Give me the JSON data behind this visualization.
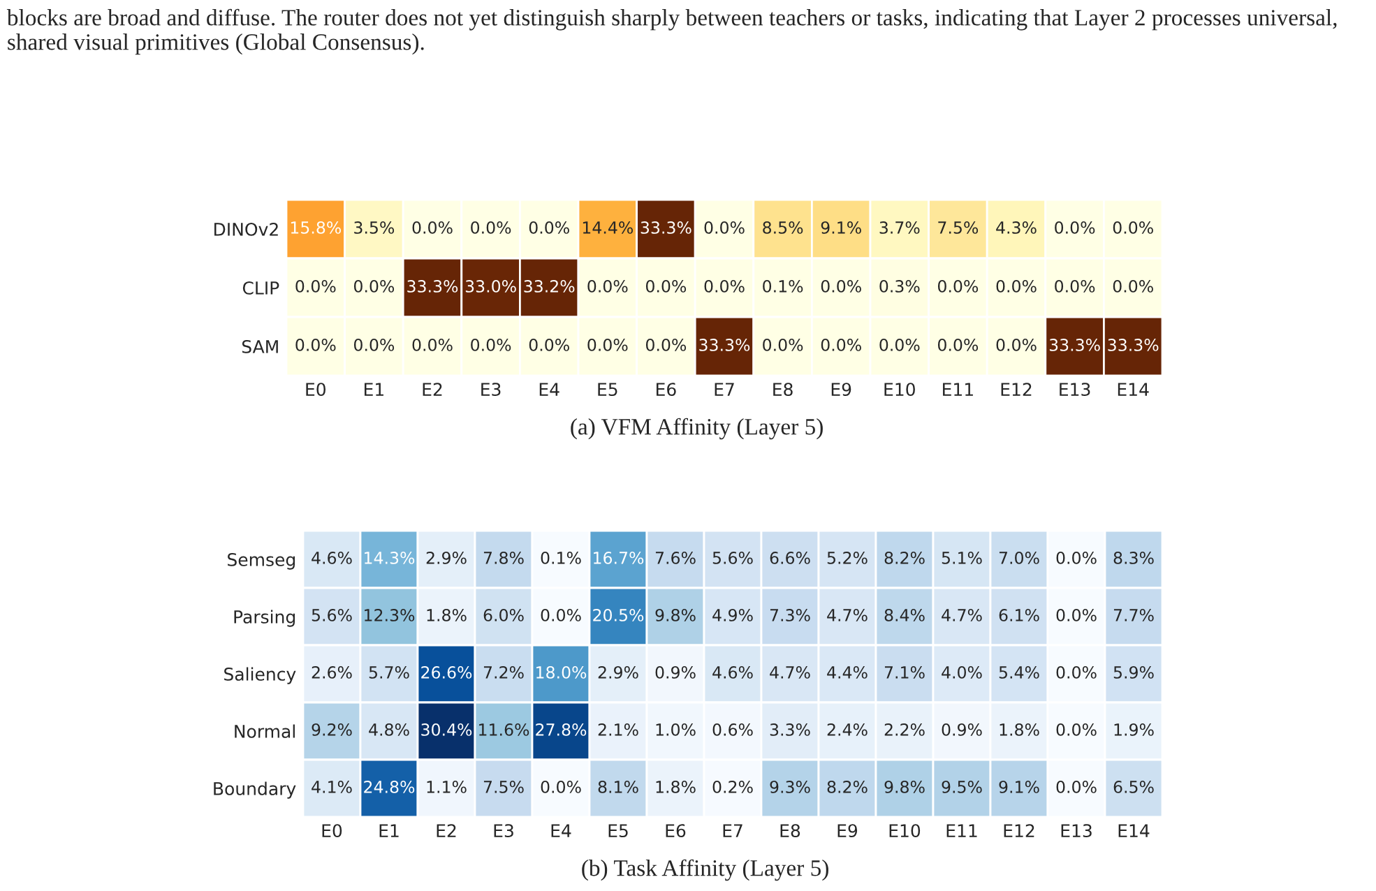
{
  "chart_data": [
    {
      "type": "heatmap",
      "title": "(a) VFM Affinity (Layer 5)",
      "annotations": [
        "blocks are broad and diffuse. The router does not yet distinguish sharply between teachers or tasks, indicating that Layer 2 processes universal, shared visual primitives (Global Consensus)."
      ],
      "categories": [
        "E0",
        "E1",
        "E2",
        "E3",
        "E4",
        "E5",
        "E6",
        "E7",
        "E8",
        "E9",
        "E10",
        "E11",
        "E12",
        "E13",
        "E14"
      ],
      "y_categories": [
        "DINOv2",
        "CLIP",
        "SAM"
      ],
      "cells": [
        [
          15.8,
          3.5,
          0.0,
          0.0,
          0.0,
          14.4,
          33.3,
          0.0,
          8.5,
          9.1,
          3.7,
          7.5,
          4.3,
          0.0,
          0.0
        ],
        [
          0.0,
          0.0,
          33.3,
          33.0,
          33.2,
          0.0,
          0.0,
          0.0,
          0.1,
          0.0,
          0.3,
          0.0,
          0.0,
          0.0,
          0.0
        ],
        [
          0.0,
          0.0,
          0.0,
          0.0,
          0.0,
          0.0,
          0.0,
          33.3,
          0.0,
          0.0,
          0.0,
          0.0,
          0.0,
          33.3,
          33.3
        ]
      ],
      "cell_labels": [
        [
          "15.8%",
          "3.5%",
          "0.0%",
          "0.0%",
          "0.0%",
          "14.4%",
          "33.3%",
          "0.0%",
          "8.5%",
          "9.1%",
          "3.7%",
          "7.5%",
          "4.3%",
          "0.0%",
          "0.0%"
        ],
        [
          "0.0%",
          "0.0%",
          "33.3%",
          "33.0%",
          "33.2%",
          "0.0%",
          "0.0%",
          "0.0%",
          "0.1%",
          "0.0%",
          "0.3%",
          "0.0%",
          "0.0%",
          "0.0%",
          "0.0%"
        ],
        [
          "0.0%",
          "0.0%",
          "0.0%",
          "0.0%",
          "0.0%",
          "0.0%",
          "0.0%",
          "33.3%",
          "0.0%",
          "0.0%",
          "0.0%",
          "0.0%",
          "0.0%",
          "33.3%",
          "33.3%"
        ]
      ]
    },
    {
      "type": "heatmap",
      "title": "(b) Task Affinity (Layer 5)",
      "categories": [
        "E0",
        "E1",
        "E2",
        "E3",
        "E4",
        "E5",
        "E6",
        "E7",
        "E8",
        "E9",
        "E10",
        "E11",
        "E12",
        "E13",
        "E14"
      ],
      "y_categories": [
        "Semseg",
        "Parsing",
        "Saliency",
        "Normal",
        "Boundary"
      ],
      "cells": [
        [
          4.6,
          14.3,
          2.9,
          7.8,
          0.1,
          16.7,
          7.6,
          5.6,
          6.6,
          5.2,
          8.2,
          5.1,
          7.0,
          0.0,
          8.3
        ],
        [
          5.6,
          12.3,
          1.8,
          6.0,
          0.0,
          20.5,
          9.8,
          4.9,
          7.3,
          4.7,
          8.4,
          4.7,
          6.1,
          0.0,
          7.7
        ],
        [
          2.6,
          5.7,
          26.6,
          7.2,
          18.0,
          2.9,
          0.9,
          4.6,
          4.7,
          4.4,
          7.1,
          4.0,
          5.4,
          0.0,
          5.9
        ],
        [
          9.2,
          4.8,
          30.4,
          11.6,
          27.8,
          2.1,
          1.0,
          0.6,
          3.3,
          2.4,
          2.2,
          0.9,
          1.8,
          0.0,
          1.9
        ],
        [
          4.1,
          24.8,
          1.1,
          7.5,
          0.0,
          8.1,
          1.8,
          0.2,
          9.3,
          8.2,
          9.8,
          9.5,
          9.1,
          0.0,
          6.5
        ]
      ],
      "cell_labels": [
        [
          "4.6%",
          "14.3%",
          "2.9%",
          "7.8%",
          "0.1%",
          "16.7%",
          "7.6%",
          "5.6%",
          "6.6%",
          "5.2%",
          "8.2%",
          "5.1%",
          "7.0%",
          "0.0%",
          "8.3%"
        ],
        [
          "5.6%",
          "12.3%",
          "1.8%",
          "6.0%",
          "0.0%",
          "20.5%",
          "9.8%",
          "4.9%",
          "7.3%",
          "4.7%",
          "8.4%",
          "4.7%",
          "6.1%",
          "0.0%",
          "7.7%"
        ],
        [
          "2.6%",
          "5.7%",
          "26.6%",
          "7.2%",
          "18.0%",
          "2.9%",
          "0.9%",
          "4.6%",
          "4.7%",
          "4.4%",
          "7.1%",
          "4.0%",
          "5.4%",
          "0.0%",
          "5.9%"
        ],
        [
          "9.2%",
          "4.8%",
          "30.4%",
          "11.6%",
          "27.8%",
          "2.1%",
          "1.0%",
          "0.6%",
          "3.3%",
          "2.4%",
          "2.2%",
          "0.9%",
          "1.8%",
          "0.0%",
          "1.9%"
        ],
        [
          "4.1%",
          "24.8%",
          "1.1%",
          "7.5%",
          "0.0%",
          "8.1%",
          "1.8%",
          "0.2%",
          "9.3%",
          "8.2%",
          "9.8%",
          "9.5%",
          "9.1%",
          "0.0%",
          "6.5%"
        ]
      ]
    }
  ]
}
